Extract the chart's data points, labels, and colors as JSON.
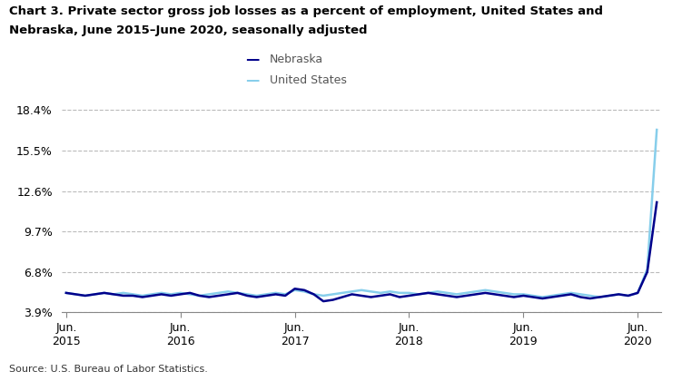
{
  "title_line1": "Chart 3. Private sector gross job losses as a percent of employment, United States and",
  "title_line2": "Nebraska, June 2015–June 2020, seasonally adjusted",
  "source": "Source: U.S. Bureau of Labor Statistics.",
  "legend": [
    "Nebraska",
    "United States"
  ],
  "nebraska_color": "#00008B",
  "us_color": "#87CEEB",
  "background_color": "#ffffff",
  "yticks": [
    3.9,
    6.8,
    9.7,
    12.6,
    15.5,
    18.4
  ],
  "ytick_labels": [
    "3.9%",
    "6.8%",
    "9.7%",
    "12.6%",
    "15.5%",
    "18.4%"
  ],
  "ylim": [
    3.9,
    19.2
  ],
  "xtick_positions": [
    0,
    12,
    24,
    36,
    48,
    60
  ],
  "xtick_labels": [
    "Jun.\n2015",
    "Jun.\n2016",
    "Jun.\n2017",
    "Jun.\n2018",
    "Jun.\n2019",
    "Jun.\n2020"
  ],
  "nebraska": [
    5.3,
    5.2,
    5.1,
    5.2,
    5.3,
    5.2,
    5.1,
    5.1,
    5.0,
    5.1,
    5.2,
    5.1,
    5.2,
    5.3,
    5.1,
    5.0,
    5.1,
    5.2,
    5.3,
    5.1,
    5.0,
    5.1,
    5.2,
    5.1,
    5.6,
    5.5,
    5.2,
    4.7,
    4.8,
    5.0,
    5.2,
    5.1,
    5.0,
    5.1,
    5.2,
    5.0,
    5.1,
    5.2,
    5.3,
    5.2,
    5.1,
    5.0,
    5.1,
    5.2,
    5.3,
    5.2,
    5.1,
    5.0,
    5.1,
    5.0,
    4.9,
    5.0,
    5.1,
    5.2,
    5.0,
    4.9,
    5.0,
    5.1,
    5.2,
    5.1,
    5.3,
    6.8,
    11.8
  ],
  "us": [
    5.3,
    5.2,
    5.1,
    5.2,
    5.3,
    5.2,
    5.3,
    5.2,
    5.1,
    5.2,
    5.3,
    5.2,
    5.3,
    5.2,
    5.1,
    5.2,
    5.3,
    5.4,
    5.3,
    5.2,
    5.1,
    5.2,
    5.3,
    5.2,
    5.5,
    5.4,
    5.2,
    5.1,
    5.2,
    5.3,
    5.4,
    5.5,
    5.4,
    5.3,
    5.4,
    5.3,
    5.3,
    5.2,
    5.3,
    5.4,
    5.3,
    5.2,
    5.3,
    5.4,
    5.5,
    5.4,
    5.3,
    5.2,
    5.2,
    5.1,
    5.0,
    5.1,
    5.2,
    5.3,
    5.2,
    5.1,
    5.0,
    5.1,
    5.2,
    5.1,
    5.3,
    7.0,
    17.0
  ],
  "linewidth": 1.8
}
